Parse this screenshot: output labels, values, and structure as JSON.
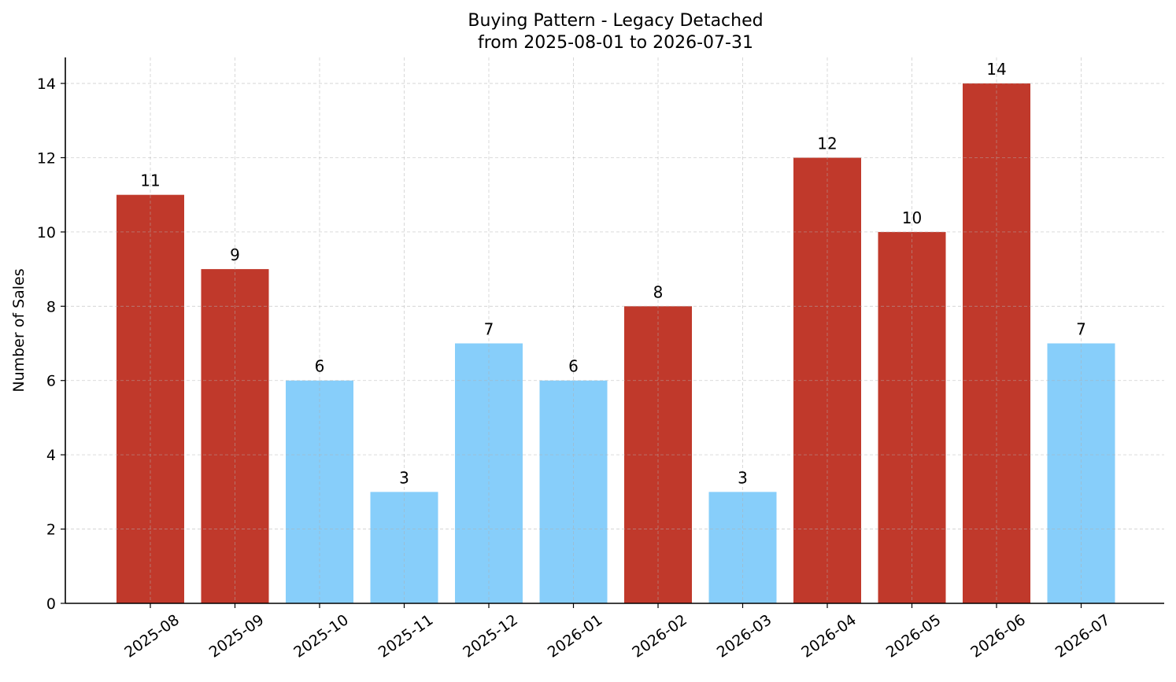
{
  "chart_data": {
    "type": "bar",
    "title": "Buying Pattern - Legacy Detached",
    "subtitle": "from 2025-08-01 to 2026-07-31",
    "xlabel": "",
    "ylabel": "Number of Sales",
    "categories": [
      "2025-08",
      "2025-09",
      "2025-10",
      "2025-11",
      "2025-12",
      "2026-01",
      "2026-02",
      "2026-03",
      "2026-04",
      "2026-05",
      "2026-06",
      "2026-07"
    ],
    "values": [
      11,
      9,
      6,
      3,
      7,
      6,
      8,
      3,
      12,
      10,
      14,
      7
    ],
    "data_labels": [
      "11",
      "9",
      "6",
      "3",
      "7",
      "6",
      "8",
      "3",
      "12",
      "10",
      "14",
      "7"
    ],
    "bar_colors": [
      "#c0392b",
      "#c0392b",
      "#87cefa",
      "#87cefa",
      "#87cefa",
      "#87cefa",
      "#c0392b",
      "#87cefa",
      "#c0392b",
      "#c0392b",
      "#c0392b",
      "#87cefa"
    ],
    "ylim": [
      0,
      14.7
    ],
    "yticks": [
      0,
      2,
      4,
      6,
      8,
      10,
      12,
      14
    ],
    "grid": true,
    "legend": "none"
  }
}
